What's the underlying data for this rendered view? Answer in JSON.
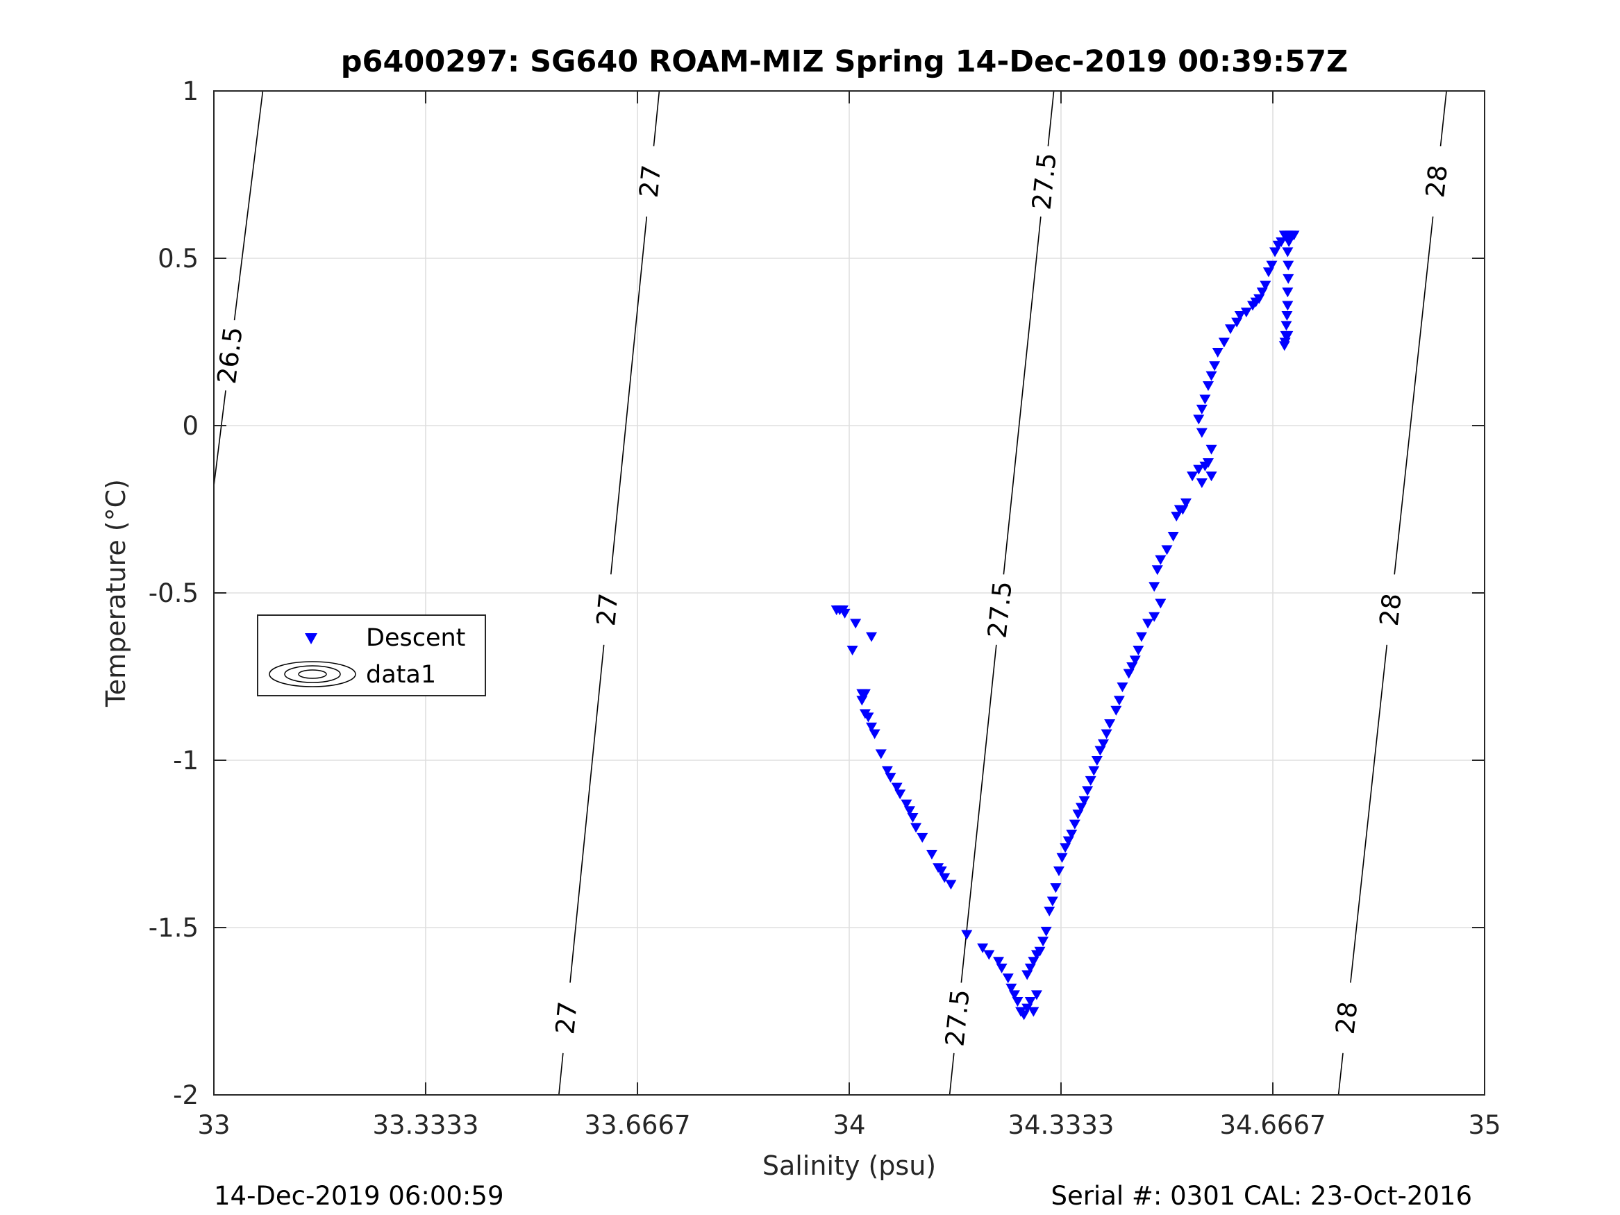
{
  "figure": {
    "footer_left": "14-Dec-2019 06:00:59",
    "footer_right": "Serial #: 0301  CAL: 23-Oct-2016"
  },
  "chart_data": {
    "type": "scatter",
    "title": "p6400297: SG640 ROAM-MIZ Spring 14-Dec-2019 00:39:57Z",
    "xlabel": "Salinity (psu)",
    "ylabel": "Temperature (°C)",
    "xlim": [
      33,
      35
    ],
    "ylim": [
      -2,
      1
    ],
    "xticks": [
      33,
      33.3333,
      33.6667,
      34,
      34.3333,
      34.6667,
      35
    ],
    "xtick_labels": [
      "33",
      "33.3333",
      "33.6667",
      "34",
      "34.3333",
      "34.6667",
      "35"
    ],
    "yticks": [
      -2,
      -1.5,
      -1,
      -0.5,
      0,
      0.5,
      1
    ],
    "ytick_labels": [
      "-2",
      "-1.5",
      "-1",
      "-0.5",
      "0",
      "0.5",
      "1"
    ],
    "grid": true,
    "legend": {
      "placement": "middle-left",
      "entries": [
        {
          "label": "Descent",
          "marker": "triangle-down",
          "color": "#0000ff"
        },
        {
          "label": "data1",
          "marker": "contour",
          "color": "#000000"
        }
      ]
    },
    "series": [
      {
        "name": "Descent",
        "marker": "triangle-down",
        "color": "#0000ff",
        "points": [
          [
            33.98,
            -0.55
          ],
          [
            33.985,
            -0.55
          ],
          [
            33.99,
            -0.55
          ],
          [
            33.993,
            -0.56
          ],
          [
            34.005,
            -0.67
          ],
          [
            34.01,
            -0.59
          ],
          [
            34.035,
            -0.63
          ],
          [
            34.02,
            -0.8
          ],
          [
            34.025,
            -0.8
          ],
          [
            34.02,
            -0.82
          ],
          [
            34.025,
            -0.86
          ],
          [
            34.03,
            -0.87
          ],
          [
            34.035,
            -0.9
          ],
          [
            34.04,
            -0.92
          ],
          [
            34.05,
            -0.98
          ],
          [
            34.06,
            -1.03
          ],
          [
            34.065,
            -1.05
          ],
          [
            34.075,
            -1.08
          ],
          [
            34.08,
            -1.1
          ],
          [
            34.09,
            -1.13
          ],
          [
            34.095,
            -1.15
          ],
          [
            34.1,
            -1.17
          ],
          [
            34.105,
            -1.2
          ],
          [
            34.115,
            -1.23
          ],
          [
            34.13,
            -1.28
          ],
          [
            34.14,
            -1.32
          ],
          [
            34.145,
            -1.33
          ],
          [
            34.15,
            -1.35
          ],
          [
            34.16,
            -1.37
          ],
          [
            34.185,
            -1.52
          ],
          [
            34.21,
            -1.56
          ],
          [
            34.22,
            -1.58
          ],
          [
            34.235,
            -1.6
          ],
          [
            34.24,
            -1.62
          ],
          [
            34.25,
            -1.65
          ],
          [
            34.255,
            -1.68
          ],
          [
            34.26,
            -1.7
          ],
          [
            34.265,
            -1.72
          ],
          [
            34.27,
            -1.75
          ],
          [
            34.275,
            -1.76
          ],
          [
            34.28,
            -1.74
          ],
          [
            34.285,
            -1.72
          ],
          [
            34.29,
            -1.75
          ],
          [
            34.295,
            -1.7
          ],
          [
            34.28,
            -1.64
          ],
          [
            34.285,
            -1.62
          ],
          [
            34.29,
            -1.6
          ],
          [
            34.295,
            -1.58
          ],
          [
            34.3,
            -1.57
          ],
          [
            34.305,
            -1.54
          ],
          [
            34.31,
            -1.51
          ],
          [
            34.315,
            -1.45
          ],
          [
            34.32,
            -1.42
          ],
          [
            34.325,
            -1.38
          ],
          [
            34.33,
            -1.33
          ],
          [
            34.335,
            -1.29
          ],
          [
            34.34,
            -1.26
          ],
          [
            34.345,
            -1.24
          ],
          [
            34.35,
            -1.22
          ],
          [
            34.355,
            -1.19
          ],
          [
            34.36,
            -1.16
          ],
          [
            34.365,
            -1.14
          ],
          [
            34.37,
            -1.12
          ],
          [
            34.375,
            -1.09
          ],
          [
            34.38,
            -1.06
          ],
          [
            34.385,
            -1.03
          ],
          [
            34.39,
            -1.0
          ],
          [
            34.395,
            -0.97
          ],
          [
            34.4,
            -0.95
          ],
          [
            34.405,
            -0.92
          ],
          [
            34.41,
            -0.89
          ],
          [
            34.42,
            -0.85
          ],
          [
            34.425,
            -0.82
          ],
          [
            34.43,
            -0.78
          ],
          [
            34.44,
            -0.74
          ],
          [
            34.445,
            -0.72
          ],
          [
            34.45,
            -0.7
          ],
          [
            34.455,
            -0.67
          ],
          [
            34.46,
            -0.63
          ],
          [
            34.47,
            -0.59
          ],
          [
            34.48,
            -0.57
          ],
          [
            34.49,
            -0.53
          ],
          [
            34.48,
            -0.48
          ],
          [
            34.485,
            -0.43
          ],
          [
            34.49,
            -0.4
          ],
          [
            34.5,
            -0.37
          ],
          [
            34.51,
            -0.33
          ],
          [
            34.515,
            -0.27
          ],
          [
            34.52,
            -0.25
          ],
          [
            34.525,
            -0.25
          ],
          [
            34.53,
            -0.23
          ],
          [
            34.54,
            -0.15
          ],
          [
            34.55,
            -0.13
          ],
          [
            34.56,
            -0.12
          ],
          [
            34.565,
            -0.11
          ],
          [
            34.57,
            -0.07
          ],
          [
            34.555,
            -0.17
          ],
          [
            34.57,
            -0.15
          ],
          [
            34.555,
            -0.02
          ],
          [
            34.55,
            0.02
          ],
          [
            34.555,
            0.05
          ],
          [
            34.56,
            0.08
          ],
          [
            34.565,
            0.12
          ],
          [
            34.57,
            0.15
          ],
          [
            34.575,
            0.18
          ],
          [
            34.58,
            0.22
          ],
          [
            34.59,
            0.25
          ],
          [
            34.6,
            0.29
          ],
          [
            34.61,
            0.31
          ],
          [
            34.615,
            0.33
          ],
          [
            34.625,
            0.34
          ],
          [
            34.635,
            0.36
          ],
          [
            34.64,
            0.37
          ],
          [
            34.645,
            0.38
          ],
          [
            34.65,
            0.4
          ],
          [
            34.655,
            0.42
          ],
          [
            34.66,
            0.46
          ],
          [
            34.665,
            0.48
          ],
          [
            34.67,
            0.52
          ],
          [
            34.675,
            0.54
          ],
          [
            34.68,
            0.55
          ],
          [
            34.685,
            0.57
          ],
          [
            34.69,
            0.57
          ],
          [
            34.695,
            0.57
          ],
          [
            34.7,
            0.57
          ],
          [
            34.69,
            0.52
          ],
          [
            34.691,
            0.48
          ],
          [
            34.691,
            0.44
          ],
          [
            34.69,
            0.4
          ],
          [
            34.69,
            0.36
          ],
          [
            34.689,
            0.33
          ],
          [
            34.688,
            0.3
          ],
          [
            34.687,
            0.27
          ],
          [
            34.686,
            0.25
          ],
          [
            34.685,
            0.24
          ],
          [
            34.69,
            0.27
          ],
          [
            34.692,
            0.55
          ]
        ]
      }
    ],
    "contours": [
      {
        "level": "26.5",
        "labels": [
          "26.5"
        ]
      },
      {
        "level": "27",
        "labels": [
          "27",
          "27",
          "27"
        ]
      },
      {
        "level": "27.5",
        "labels": [
          "27.5",
          "27.5",
          "27.5"
        ]
      },
      {
        "level": "28",
        "labels": [
          "28",
          "28",
          "28"
        ]
      }
    ]
  }
}
